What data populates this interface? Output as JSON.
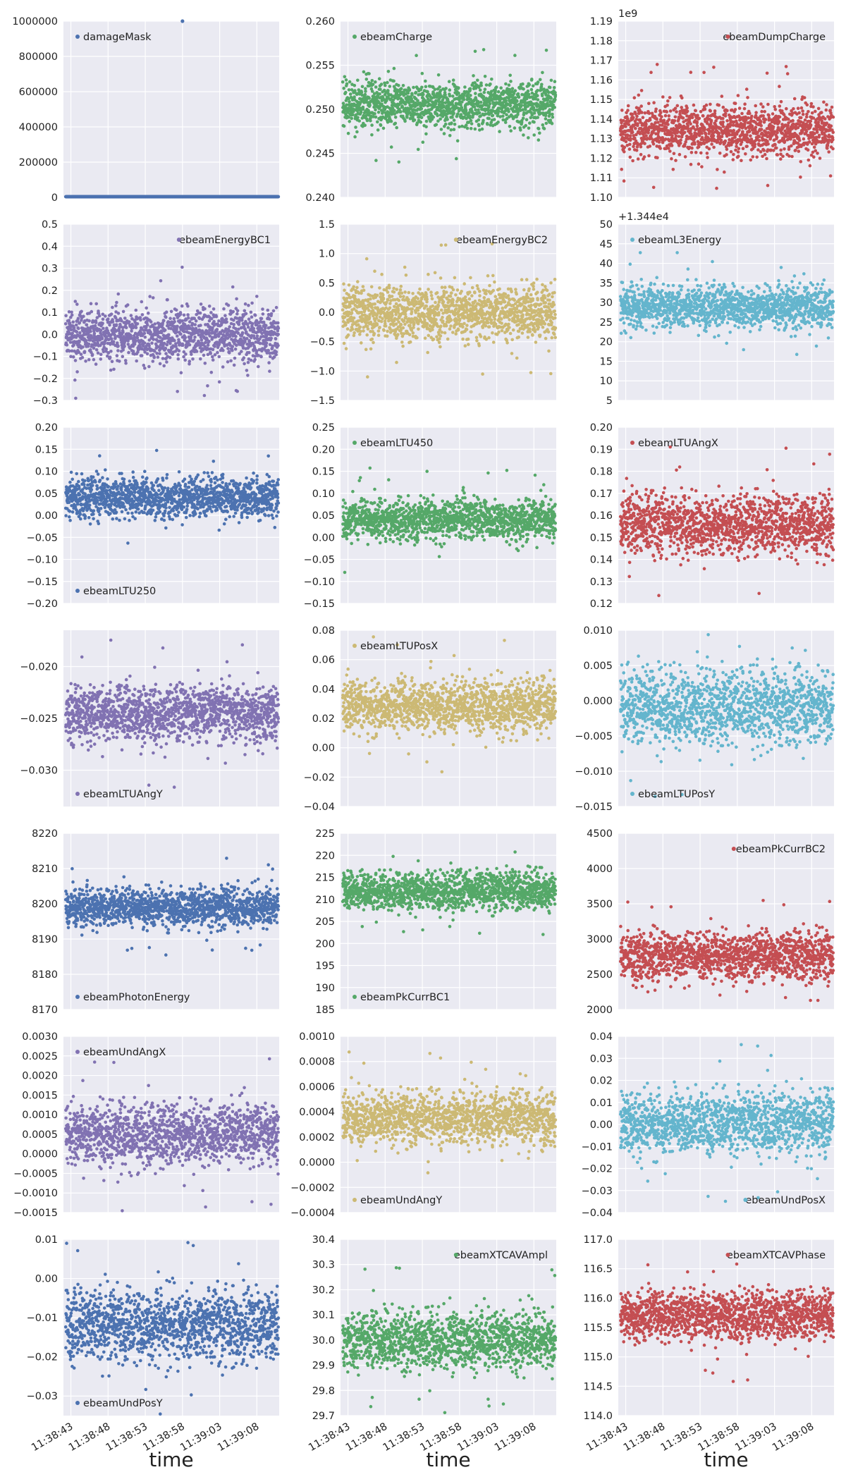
{
  "x_axis": {
    "label": "time",
    "range": [
      "11:38:42",
      "11:39:11"
    ],
    "ticks": [
      "11:38:43",
      "11:38:48",
      "11:38:53",
      "11:38:58",
      "11:39:03",
      "11:39:08"
    ]
  },
  "colors": {
    "blue": "#4c72b0",
    "green": "#55a868",
    "red": "#c44e52",
    "purple": "#8172b2",
    "olive": "#ccb974",
    "cyan": "#64b5cd",
    "panel_bg": "#eaeaf2",
    "grid": "#ffffff"
  },
  "chart_data": [
    {
      "type": "scatter",
      "series": [
        {
          "name": "damageMask",
          "color": "#4c72b0"
        }
      ],
      "ylim": [
        0,
        1000000
      ],
      "yticks": [
        "0",
        "200000",
        "400000",
        "600000",
        "800000",
        "1000000"
      ],
      "legend_loc": "upper left",
      "mean": 4000,
      "spread": 1,
      "outliers": [
        {
          "x": "11:38:58",
          "y": 1000000
        }
      ]
    },
    {
      "type": "scatter",
      "series": [
        {
          "name": "ebeamCharge",
          "color": "#55a868"
        }
      ],
      "ylim": [
        0.24,
        0.26
      ],
      "yticks": [
        "0.240",
        "0.245",
        "0.250",
        "0.255",
        "0.260"
      ],
      "legend_loc": "upper left",
      "mean": 0.2505,
      "spread": 0.0017
    },
    {
      "type": "scatter",
      "series": [
        {
          "name": "ebeamDumpCharge",
          "color": "#c44e52"
        }
      ],
      "ylim": [
        1.1,
        1.19
      ],
      "yticks": [
        "1.10",
        "1.11",
        "1.12",
        "1.13",
        "1.14",
        "1.15",
        "1.16",
        "1.17",
        "1.18",
        "1.19"
      ],
      "offset_label": "1e9",
      "legend_loc": "upper right",
      "mean": 1.134,
      "spread": 0.0085
    },
    {
      "type": "scatter",
      "series": [
        {
          "name": "ebeamEnergyBC1",
          "color": "#8172b2"
        }
      ],
      "ylim": [
        -0.3,
        0.5
      ],
      "yticks": [
        "−0.3",
        "−0.2",
        "−0.1",
        "0.0",
        "0.1",
        "0.2",
        "0.3",
        "0.4",
        "0.5"
      ],
      "legend_loc": "upper right",
      "mean": 0.0,
      "spread": 0.08
    },
    {
      "type": "scatter",
      "series": [
        {
          "name": "ebeamEnergyBC2",
          "color": "#ccb974"
        }
      ],
      "ylim": [
        -1.5,
        1.5
      ],
      "yticks": [
        "−1.5",
        "−1.0",
        "−0.5",
        "0.0",
        "0.5",
        "1.0",
        "1.5"
      ],
      "legend_loc": "upper right",
      "mean": 0.0,
      "spread": 0.3
    },
    {
      "type": "scatter",
      "series": [
        {
          "name": "ebeamL3Energy",
          "color": "#64b5cd"
        }
      ],
      "ylim": [
        5,
        50
      ],
      "yticks": [
        "5",
        "10",
        "15",
        "20",
        "25",
        "30",
        "35",
        "40",
        "45",
        "50"
      ],
      "offset_label": "+1.344e4",
      "legend_loc": "upper left",
      "mean": 29,
      "spread": 3.5
    },
    {
      "type": "scatter",
      "series": [
        {
          "name": "ebeamLTU250",
          "color": "#4c72b0"
        }
      ],
      "ylim": [
        -0.2,
        0.2
      ],
      "yticks": [
        "−0.20",
        "−0.15",
        "−0.10",
        "−0.05",
        "0.00",
        "0.05",
        "0.10",
        "0.15",
        "0.20"
      ],
      "legend_loc": "lower left",
      "mean": 0.04,
      "spread": 0.03
    },
    {
      "type": "scatter",
      "series": [
        {
          "name": "ebeamLTU450",
          "color": "#55a868"
        }
      ],
      "ylim": [
        -0.15,
        0.25
      ],
      "yticks": [
        "−0.15",
        "−0.10",
        "−0.05",
        "0.00",
        "0.05",
        "0.10",
        "0.15",
        "0.20",
        "0.25"
      ],
      "legend_loc": "upper left",
      "mean": 0.04,
      "spread": 0.03
    },
    {
      "type": "scatter",
      "series": [
        {
          "name": "ebeamLTUAngX",
          "color": "#c44e52"
        }
      ],
      "ylim": [
        0.12,
        0.2
      ],
      "yticks": [
        "0.12",
        "0.13",
        "0.14",
        "0.15",
        "0.16",
        "0.17",
        "0.18",
        "0.19",
        "0.20"
      ],
      "legend_loc": "upper left",
      "mean": 0.156,
      "spread": 0.009
    },
    {
      "type": "scatter",
      "series": [
        {
          "name": "ebeamLTUAngY",
          "color": "#8172b2"
        }
      ],
      "ylim": [
        -0.0335,
        -0.0165
      ],
      "yticks": [
        "−0.030",
        "−0.025",
        "−0.020"
      ],
      "ytick_values": [
        -0.03,
        -0.025,
        -0.02
      ],
      "legend_loc": "lower left",
      "mean": -0.0245,
      "spread": 0.0018
    },
    {
      "type": "scatter",
      "series": [
        {
          "name": "ebeamLTUPosX",
          "color": "#ccb974"
        }
      ],
      "ylim": [
        -0.04,
        0.08
      ],
      "yticks": [
        "−0.04",
        "−0.02",
        "0.00",
        "0.02",
        "0.04",
        "0.06",
        "0.08"
      ],
      "legend_loc": "upper left",
      "mean": 0.028,
      "spread": 0.012
    },
    {
      "type": "scatter",
      "series": [
        {
          "name": "ebeamLTUPosY",
          "color": "#64b5cd"
        }
      ],
      "ylim": [
        -0.015,
        0.01
      ],
      "yticks": [
        "−0.015",
        "−0.010",
        "−0.005",
        "0.000",
        "0.005",
        "0.010"
      ],
      "legend_loc": "lower left",
      "mean": -0.001,
      "spread": 0.0035
    },
    {
      "type": "scatter",
      "series": [
        {
          "name": "ebeamPhotonEnergy",
          "color": "#4c72b0"
        }
      ],
      "ylim": [
        8170,
        8220
      ],
      "yticks": [
        "8170",
        "8180",
        "8190",
        "8200",
        "8210",
        "8220"
      ],
      "legend_loc": "lower left",
      "mean": 8199,
      "spread": 3.5
    },
    {
      "type": "scatter",
      "series": [
        {
          "name": "ebeamPkCurrBC1",
          "color": "#55a868"
        }
      ],
      "ylim": [
        185,
        225
      ],
      "yticks": [
        "185",
        "190",
        "195",
        "200",
        "205",
        "210",
        "215",
        "220",
        "225"
      ],
      "legend_loc": "lower left",
      "mean": 212,
      "spread": 2.8
    },
    {
      "type": "scatter",
      "series": [
        {
          "name": "ebeamPkCurrBC2",
          "color": "#c44e52"
        }
      ],
      "ylim": [
        2000,
        4500
      ],
      "yticks": [
        "2000",
        "2500",
        "3000",
        "3500",
        "4000",
        "4500"
      ],
      "legend_loc": "upper right",
      "mean": 2750,
      "spread": 220
    },
    {
      "type": "scatter",
      "series": [
        {
          "name": "ebeamUndAngX",
          "color": "#8172b2"
        }
      ],
      "ylim": [
        -0.0015,
        0.003
      ],
      "yticks": [
        "−0.0015",
        "−0.0010",
        "−0.0005",
        "0.0000",
        "0.0005",
        "0.0010",
        "0.0015",
        "0.0020",
        "0.0025",
        "0.0030"
      ],
      "legend_loc": "upper left",
      "mean": 0.0005,
      "spread": 0.0005
    },
    {
      "type": "scatter",
      "series": [
        {
          "name": "ebeamUndAngY",
          "color": "#ccb974"
        }
      ],
      "ylim": [
        -0.0004,
        0.001
      ],
      "yticks": [
        "−0.0004",
        "−0.0002",
        "0.0000",
        "0.0002",
        "0.0004",
        "0.0006",
        "0.0008",
        "0.0010"
      ],
      "legend_loc": "lower left",
      "mean": 0.00035,
      "spread": 0.00014
    },
    {
      "type": "scatter",
      "series": [
        {
          "name": "ebeamUndPosX",
          "color": "#64b5cd"
        }
      ],
      "ylim": [
        -0.04,
        0.04
      ],
      "yticks": [
        "−0.04",
        "−0.03",
        "−0.02",
        "−0.01",
        "0.00",
        "0.01",
        "0.02",
        "0.03",
        "0.04"
      ],
      "legend_loc": "lower right",
      "mean": 0.001,
      "spread": 0.009
    },
    {
      "type": "scatter",
      "series": [
        {
          "name": "ebeamUndPosY",
          "color": "#4c72b0"
        }
      ],
      "ylim": [
        -0.035,
        0.01
      ],
      "yticks": [
        "−0.03",
        "−0.02",
        "−0.01",
        "0.00",
        "0.01"
      ],
      "ytick_values": [
        -0.03,
        -0.02,
        -0.01,
        0.0,
        0.01
      ],
      "legend_loc": "lower left",
      "mean": -0.012,
      "spread": 0.006
    },
    {
      "type": "scatter",
      "series": [
        {
          "name": "ebeamXTCAVAmpl",
          "color": "#55a868"
        }
      ],
      "ylim": [
        29.7,
        30.4
      ],
      "yticks": [
        "29.7",
        "29.8",
        "29.9",
        "30.0",
        "30.1",
        "30.2",
        "30.3",
        "30.4"
      ],
      "legend_loc": "upper right",
      "mean": 30.0,
      "spread": 0.075
    },
    {
      "type": "scatter",
      "series": [
        {
          "name": "ebeamXTCAVPhase",
          "color": "#c44e52"
        }
      ],
      "ylim": [
        114.0,
        117.0
      ],
      "yticks": [
        "114.0",
        "114.5",
        "115.0",
        "115.5",
        "116.0",
        "116.5",
        "117.0"
      ],
      "legend_loc": "upper right",
      "mean": 115.7,
      "spread": 0.28
    }
  ]
}
